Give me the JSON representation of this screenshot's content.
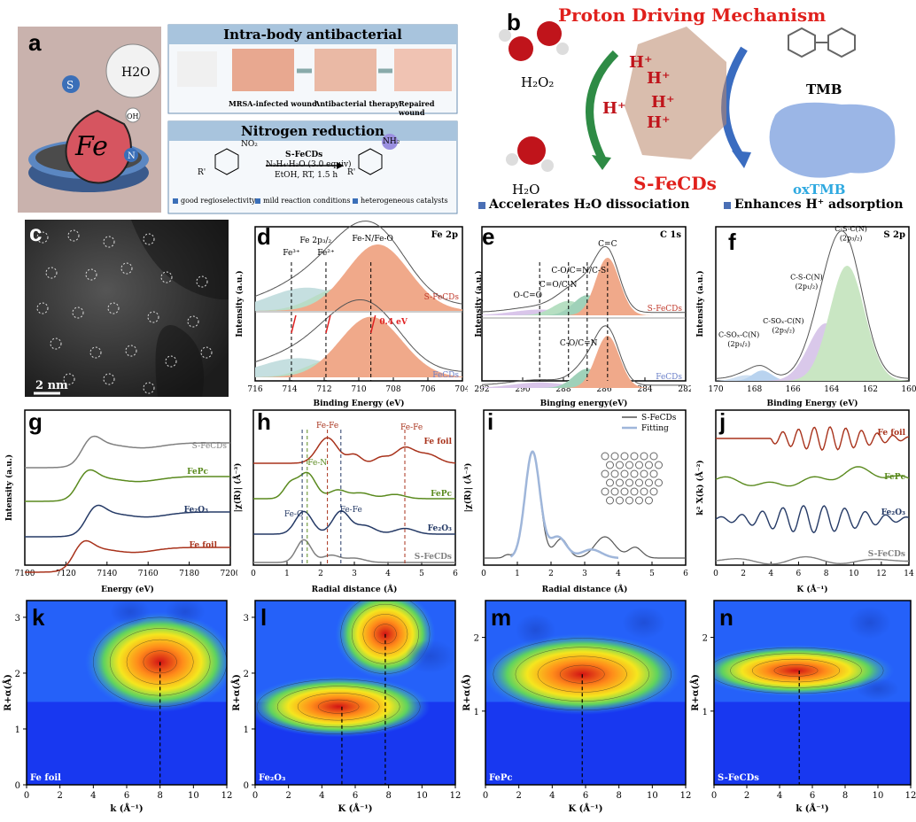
{
  "panel_labels": {
    "a": "a",
    "b": "b",
    "c": "c",
    "d": "d",
    "e": "e",
    "f": "f",
    "g": "g",
    "h": "h",
    "i": "i",
    "j": "j",
    "k": "k",
    "l": "l",
    "m": "m",
    "n": "n"
  },
  "panel_a": {
    "illustration_labels": {
      "s": "S",
      "h2o": "H2O",
      "oh": "OH",
      "fe": "Fe",
      "n": "N"
    },
    "antibacterial": {
      "title": "Intra-body antibacterial",
      "steps": [
        "MRSA-infected wound",
        "Antibacterial therapy",
        "Repaired wound"
      ]
    },
    "nitrogen": {
      "title": "Nitrogen reduction",
      "catalyst": "S-FeCDs",
      "reagent": "N₂H₄·H₂O (3.0 equiv)",
      "conditions": "EtOH, RT, 1.5 h",
      "r_left": "R'",
      "r_right": "R'",
      "no2": "NO₂",
      "nh2": "NH₂",
      "features": [
        "good regioselectivity",
        "mild reaction conditions",
        "heterogeneous catalysts"
      ]
    }
  },
  "panel_b": {
    "title": "Proton Driving Mechanism",
    "h2o2": "H₂O₂",
    "h2o": "H₂O",
    "tmb": "TMB",
    "oxtmb": "oxTMB",
    "catalyst": "S-FeCDs",
    "protons": [
      "H⁺",
      "H⁺",
      "H⁺",
      "H⁺",
      "H⁺"
    ],
    "bullets": [
      "Accelerates H₂O dissociation",
      "Enhances H⁺ adsorption"
    ]
  },
  "panel_c": {
    "scale": "2 nm"
  },
  "panel_d": {
    "element": "Fe 2p",
    "xlabel": "Binding Energy (eV)",
    "ylabel": "Intensity (a.u.)",
    "ticks": [
      "716",
      "714",
      "712",
      "710",
      "708",
      "706",
      "704"
    ],
    "peaks": [
      "Fe³⁺",
      "Fe 2p₃/₂",
      "Fe²⁺",
      "Fe-N/Fe-O"
    ],
    "shift": "0.4 eV",
    "series": [
      "S-FeCDs",
      "FeCDs"
    ]
  },
  "panel_e": {
    "element": "C 1s",
    "xlabel": "Binging energy(eV)",
    "ylabel": "Intensity (a.u.)",
    "ticks": [
      "292",
      "290",
      "288",
      "286",
      "284",
      "282"
    ],
    "peaks": [
      "O-C=O",
      "C=O/C-N",
      "C-O/C=N/C-S",
      "C=C",
      "C-O/C=N"
    ],
    "series": [
      "S-FeCDs",
      "FeCDs"
    ]
  },
  "panel_f": {
    "element": "S 2p",
    "xlabel": "Binding Energy (eV)",
    "ylabel": "Intensity (a.u.)",
    "ticks": [
      "170",
      "168",
      "166",
      "164",
      "162",
      "160"
    ],
    "peaks": [
      "C-SOₓ-C(N)",
      "(2p₁/₂)",
      "C-SOₓ-C(N)",
      "(2p₃/₂)",
      "C-S-C(N)",
      "(2p₁/₂)",
      "C-S-C(N)",
      "(2p₃/₂)"
    ]
  },
  "panel_g": {
    "xlabel": "Energy (eV)",
    "ylabel": "Intensity (a.u.)",
    "ticks": [
      "7100",
      "7120",
      "7140",
      "7160",
      "7180",
      "7200"
    ],
    "series": [
      "S-FeCDs",
      "FePc",
      "Fe₂O₃",
      "Fe foil"
    ]
  },
  "panel_h": {
    "xlabel": "Radial distance (Å)",
    "ylabel": "|χ(R)| (Å⁻³)",
    "ticks": [
      "0",
      "1",
      "2",
      "3",
      "4",
      "5",
      "6"
    ],
    "series": [
      "Fe foil",
      "FePc",
      "Fe₂O₃",
      "S-FeCDs"
    ],
    "bonds": [
      "Fe-Fe",
      "Fe-Fe",
      "Fe-N",
      "Fe-O",
      "Fe-Fe"
    ]
  },
  "panel_i": {
    "xlabel": "Radial distance (Å)",
    "ylabel": "|χ(R)| (Å⁻³)",
    "ticks": [
      "0",
      "1",
      "2",
      "3",
      "4",
      "5",
      "6"
    ],
    "legend": [
      "S-FeCDs",
      "Fitting"
    ]
  },
  "panel_j": {
    "xlabel": "K (Å⁻¹)",
    "ylabel": "k² X(k) (Å⁻²)",
    "ticks": [
      "0",
      "2",
      "4",
      "6",
      "8",
      "10",
      "12",
      "14"
    ],
    "series": [
      "Fe foil",
      "FePc",
      "Fe₂O₃",
      "S-FeCDs"
    ]
  },
  "panel_k": {
    "name": "Fe foil",
    "xlabel": "k (Å⁻¹)",
    "ylabel": "R+α(Å)",
    "xticks": [
      "0",
      "2",
      "4",
      "6",
      "8",
      "10",
      "12"
    ],
    "yticks": [
      "0",
      "1",
      "2",
      "3"
    ]
  },
  "panel_l": {
    "name": "Fe₂O₃",
    "xlabel": "K (Å⁻¹)",
    "ylabel": "R+α(Å)",
    "xticks": [
      "0",
      "2",
      "4",
      "6",
      "8",
      "10",
      "12"
    ],
    "yticks": [
      "0",
      "1",
      "2",
      "3"
    ]
  },
  "panel_m": {
    "name": "FePc",
    "xlabel": "K (Å⁻¹)",
    "ylabel": "R+α(Å)",
    "xticks": [
      "0",
      "2",
      "4",
      "6",
      "8",
      "10",
      "12"
    ],
    "yticks": [
      "1",
      "2"
    ]
  },
  "panel_n": {
    "name": "S-FeCDs",
    "xlabel": "k (Å⁻¹)",
    "ylabel": "R+α(Å)",
    "xticks": [
      "0",
      "2",
      "4",
      "6",
      "8",
      "10",
      "12"
    ],
    "yticks": [
      "1",
      "2"
    ]
  },
  "colors": {
    "sfecds_red": "#c0392b",
    "fecds_blue": "#6a7fc8",
    "fepc_green": "#5a8a1e",
    "fe2o3_navy": "#253a66",
    "fefoil_red": "#a8321b",
    "gray": "#808080"
  }
}
